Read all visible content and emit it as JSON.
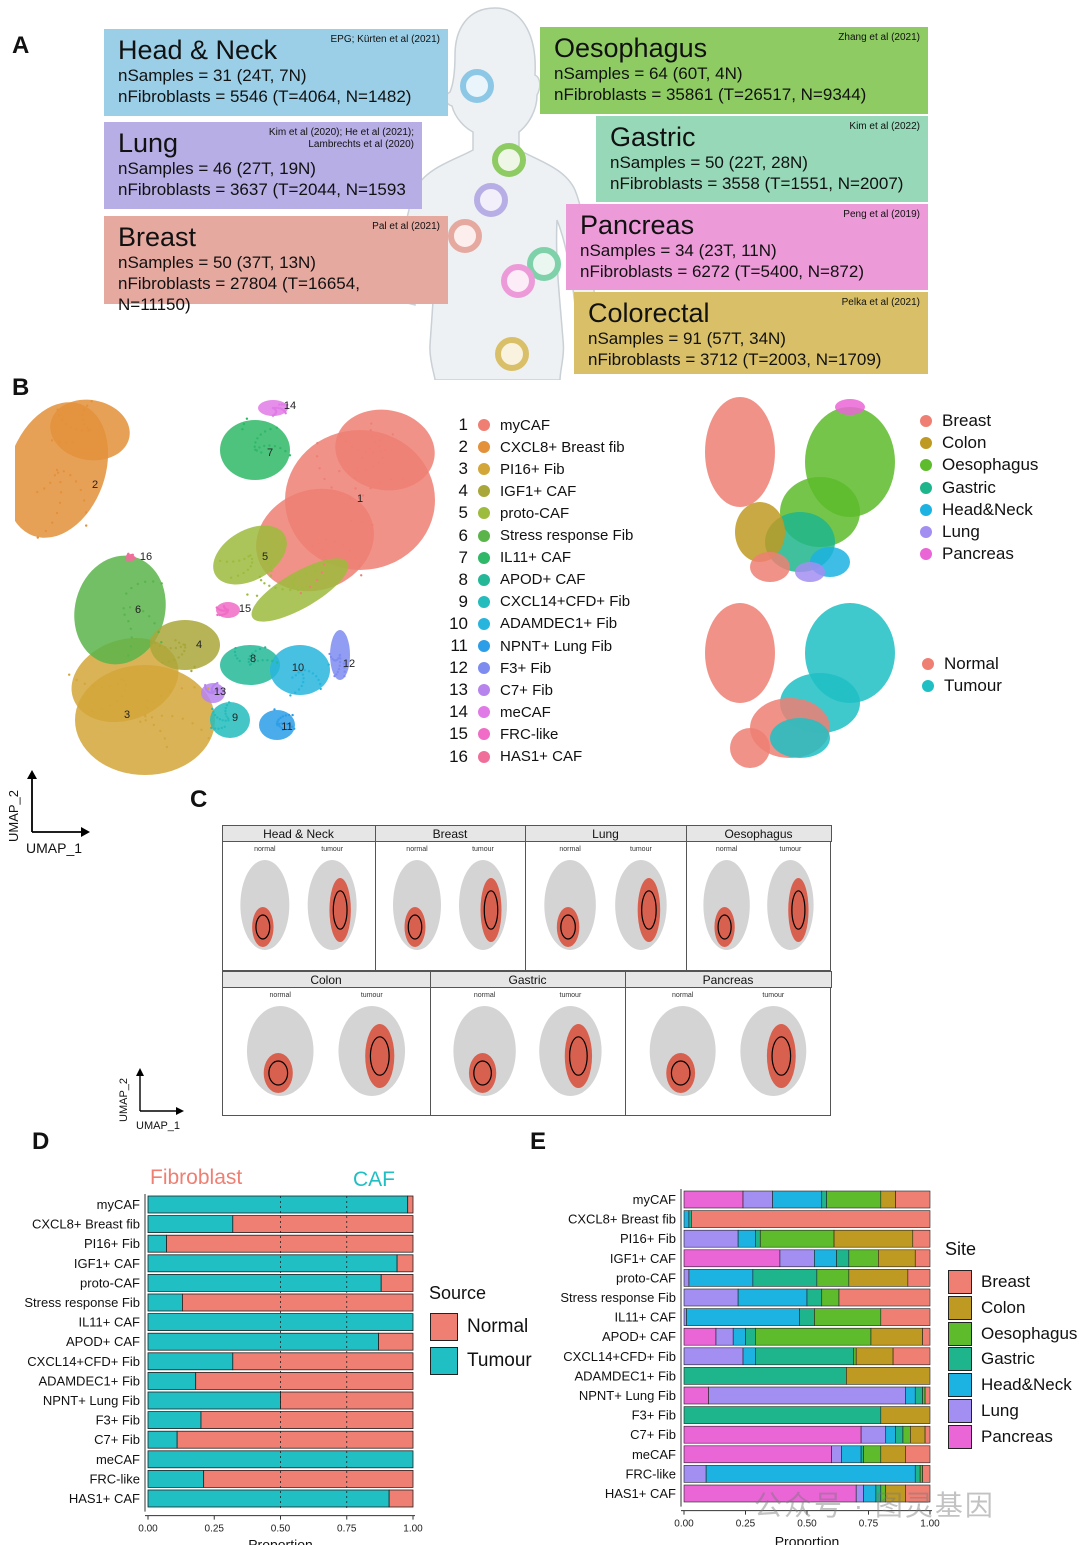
{
  "panel_labels": {
    "a": "A",
    "b": "B",
    "c": "C",
    "d": "D",
    "e": "E"
  },
  "panel_a": {
    "boxes": [
      {
        "id": "head_neck",
        "title": "Head & Neck",
        "samples": "nSamples = 31 (24T, 7N)",
        "fibroblasts": "nFibroblasts = 5546 (T=4064, N=1482)",
        "citation": "EPG; Kürten et al (2021)",
        "color": "#9bcfe8"
      },
      {
        "id": "lung",
        "title": "Lung",
        "samples": "nSamples = 46 (27T, 19N)",
        "fibroblasts": "nFibroblasts = 3637 (T=2044, N=1593",
        "citation": "Kim et al (2020); He et al (2021); Lambrechts et al (2020)",
        "color": "#b7aee6"
      },
      {
        "id": "breast",
        "title": "Breast",
        "samples": "nSamples = 50 (37T, 13N)",
        "fibroblasts": "nFibroblasts = 27804 (T=16654, N=11150)",
        "citation": "Pal et al (2021)",
        "color": "#e5a9a0"
      },
      {
        "id": "oesophagus",
        "title": "Oesophagus",
        "samples": "nSamples = 64 (60T, 4N)",
        "fibroblasts": "nFibroblasts = 35861 (T=26517, N=9344)",
        "citation": "Zhang et al (2021)",
        "color": "#8ecb63"
      },
      {
        "id": "gastric",
        "title": "Gastric",
        "samples": "nSamples = 50 (22T, 28N)",
        "fibroblasts": "nFibroblasts = 3558 (T=1551, N=2007)",
        "citation": "Kim et al (2022)",
        "color": "#97d8b8"
      },
      {
        "id": "pancreas",
        "title": "Pancreas",
        "samples": "nSamples = 34 (23T, 11N)",
        "fibroblasts": "nFibroblasts = 6272 (T=5400, N=872)",
        "citation": "Peng et al (2019)",
        "color": "#ed9ad9"
      },
      {
        "id": "colorectal",
        "title": "Colorectal",
        "samples": "nSamples = 91 (57T, 34N)",
        "fibroblasts": "nFibroblasts = 3712 (T=2003, N=1709)",
        "citation": "Pelka et al (2021)",
        "color": "#d9c068"
      }
    ]
  },
  "panel_b": {
    "clusters": [
      {
        "n": "1",
        "name": "myCAF",
        "color": "#ef7f73"
      },
      {
        "n": "2",
        "name": "CXCL8+ Breast fib",
        "color": "#e3913a"
      },
      {
        "n": "3",
        "name": "PI16+ Fib",
        "color": "#d3a63a"
      },
      {
        "n": "4",
        "name": "IGF1+ CAF",
        "color": "#a9a73a"
      },
      {
        "n": "5",
        "name": "proto-CAF",
        "color": "#9dbb3d"
      },
      {
        "n": "6",
        "name": "Stress response Fib",
        "color": "#5ab44a"
      },
      {
        "n": "7",
        "name": "IL11+ CAF",
        "color": "#2fb867"
      },
      {
        "n": "8",
        "name": "APOD+ CAF",
        "color": "#25b898"
      },
      {
        "n": "9",
        "name": "CXCL14+CFD+ Fib",
        "color": "#24bcbc"
      },
      {
        "n": "10",
        "name": "ADAMDEC1+ Fib",
        "color": "#27b5dd"
      },
      {
        "n": "11",
        "name": "NPNT+ Lung Fib",
        "color": "#2c9ee8"
      },
      {
        "n": "12",
        "name": "F3+ Fib",
        "color": "#7e8cf0"
      },
      {
        "n": "13",
        "name": "C7+ Fib",
        "color": "#b784ee"
      },
      {
        "n": "14",
        "name": "meCAF",
        "color": "#e07ae6"
      },
      {
        "n": "15",
        "name": "FRC-like",
        "color": "#f06cc6"
      },
      {
        "n": "16",
        "name": "HAS1+ CAF",
        "color": "#ef6f9a"
      }
    ],
    "site_legend": [
      {
        "name": "Breast",
        "color": "#ef7f73"
      },
      {
        "name": "Colon",
        "color": "#bf9a22"
      },
      {
        "name": "Oesophagus",
        "color": "#5dbb2c"
      },
      {
        "name": "Gastric",
        "color": "#1fb58c"
      },
      {
        "name": "Head&Neck",
        "color": "#1cb2e2"
      },
      {
        "name": "Lung",
        "color": "#a38ef2"
      },
      {
        "name": "Pancreas",
        "color": "#ea65d6"
      }
    ],
    "source_legend": [
      {
        "name": "Normal",
        "color": "#ef7f73"
      },
      {
        "name": "Tumour",
        "color": "#1fbfc4"
      }
    ],
    "umap_x": "UMAP_1",
    "umap_y": "UMAP_2"
  },
  "panel_c": {
    "facets": [
      "Head & Neck",
      "Breast",
      "Lung",
      "Oesophagus",
      "Colon",
      "Gastric",
      "Pancreas"
    ],
    "sub_normal": "normal",
    "sub_tumour": "tumour",
    "umap_x": "UMAP_1",
    "umap_y": "UMAP_2"
  },
  "colors": {
    "normal": "#ef7f73",
    "tumour": "#1fbfc4"
  },
  "chart_data": [
    {
      "id": "D",
      "type": "bar",
      "orientation": "horizontal-stacked",
      "annotations": [
        "Fibroblast",
        "CAF"
      ],
      "categories": [
        "myCAF",
        "CXCL8+ Breast fib",
        "PI16+ Fib",
        "IGF1+ CAF",
        "proto-CAF",
        "Stress response Fib",
        "IL11+ CAF",
        "APOD+ CAF",
        "CXCL14+CFD+ Fib",
        "ADAMDEC1+ Fib",
        "NPNT+ Lung Fib",
        "F3+ Fib",
        "C7+ Fib",
        "meCAF",
        "FRC-like",
        "HAS1+ CAF"
      ],
      "series": [
        {
          "name": "Tumour",
          "values": [
            0.98,
            0.32,
            0.07,
            0.94,
            0.88,
            0.13,
            1.0,
            0.87,
            0.32,
            0.18,
            0.5,
            0.2,
            0.11,
            1.0,
            0.21,
            0.91
          ]
        },
        {
          "name": "Normal",
          "values": [
            0.02,
            0.68,
            0.93,
            0.06,
            0.12,
            0.87,
            0.0,
            0.13,
            0.68,
            0.82,
            0.5,
            0.8,
            0.89,
            0.0,
            0.79,
            0.09
          ]
        }
      ],
      "legend_title": "Source",
      "xlabel": "Proportion",
      "xticks": [
        "0.00",
        "0.25",
        "0.50",
        "0.75",
        "1.00"
      ],
      "xlim": [
        0,
        1
      ]
    },
    {
      "id": "E",
      "type": "bar",
      "orientation": "horizontal-stacked",
      "categories": [
        "myCAF",
        "CXCL8+ Breast fib",
        "PI16+ Fib",
        "IGF1+ CAF",
        "proto-CAF",
        "Stress response Fib",
        "IL11+ CAF",
        "APOD+ CAF",
        "CXCL14+CFD+ Fib",
        "ADAMDEC1+ Fib",
        "NPNT+ Lung Fib",
        "F3+ Fib",
        "C7+ Fib",
        "meCAF",
        "FRC-like",
        "HAS1+ CAF"
      ],
      "series": [
        {
          "name": "Pancreas",
          "values": [
            0.24,
            0.0,
            0.0,
            0.39,
            0.0,
            0.0,
            0.0,
            0.13,
            0.0,
            0.0,
            0.1,
            0.0,
            0.72,
            0.6,
            0.0,
            0.7
          ]
        },
        {
          "name": "Lung",
          "values": [
            0.12,
            0.0,
            0.22,
            0.14,
            0.02,
            0.22,
            0.01,
            0.07,
            0.24,
            0.0,
            0.8,
            0.0,
            0.1,
            0.04,
            0.09,
            0.03
          ]
        },
        {
          "name": "Head&Neck",
          "values": [
            0.2,
            0.02,
            0.07,
            0.09,
            0.26,
            0.28,
            0.46,
            0.05,
            0.05,
            0.0,
            0.04,
            0.0,
            0.04,
            0.08,
            0.85,
            0.05
          ]
        },
        {
          "name": "Gastric",
          "values": [
            0.02,
            0.01,
            0.02,
            0.05,
            0.26,
            0.06,
            0.06,
            0.04,
            0.4,
            0.66,
            0.03,
            0.8,
            0.03,
            0.01,
            0.02,
            0.02
          ]
        },
        {
          "name": "Oesophagus",
          "values": [
            0.22,
            0.0,
            0.3,
            0.12,
            0.13,
            0.07,
            0.27,
            0.47,
            0.01,
            0.0,
            0.01,
            0.0,
            0.03,
            0.07,
            0.01,
            0.02
          ]
        },
        {
          "name": "Colon",
          "values": [
            0.06,
            0.0,
            0.32,
            0.15,
            0.24,
            0.0,
            0.0,
            0.21,
            0.15,
            0.34,
            0.0,
            0.2,
            0.06,
            0.1,
            0.0,
            0.08
          ]
        },
        {
          "name": "Breast",
          "values": [
            0.14,
            0.97,
            0.07,
            0.06,
            0.09,
            0.37,
            0.2,
            0.03,
            0.15,
            0.0,
            0.02,
            0.0,
            0.02,
            0.1,
            0.03,
            0.1
          ]
        }
      ],
      "legend_title": "Site",
      "legend_order": [
        "Breast",
        "Colon",
        "Oesophagus",
        "Gastric",
        "Head&Neck",
        "Lung",
        "Pancreas"
      ],
      "xlabel": "Proportion",
      "xticks": [
        "0.00",
        "0.25",
        "0.50",
        "0.75",
        "1.00"
      ],
      "xlim": [
        0,
        1
      ]
    }
  ],
  "watermark": "公众号 · 图灵基因"
}
